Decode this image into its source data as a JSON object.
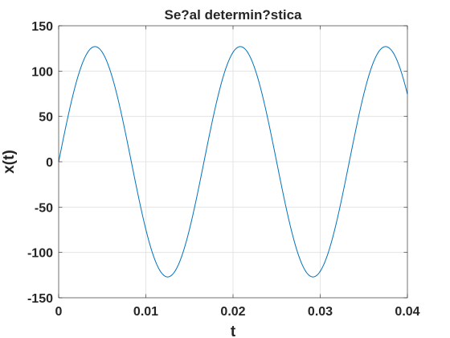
{
  "chart_data": {
    "type": "line",
    "title": "Se?al determin?stica",
    "xlabel": "t",
    "ylabel": "x(t)",
    "xlim": [
      0,
      0.04
    ],
    "ylim": [
      -150,
      150
    ],
    "xticks": [
      0,
      0.01,
      0.02,
      0.03,
      0.04
    ],
    "xtick_labels": [
      "0",
      "0.01",
      "0.02",
      "0.03",
      "0.04"
    ],
    "yticks": [
      -150,
      -100,
      -50,
      0,
      50,
      100,
      150
    ],
    "ytick_labels": [
      "-150",
      "-100",
      "-50",
      "0",
      "50",
      "100",
      "150"
    ],
    "grid": true,
    "series": [
      {
        "function": "x(t) = 127·sin(2π·60·t)",
        "amplitude": 127,
        "frequency": 60,
        "color": "#0072bd"
      }
    ]
  }
}
